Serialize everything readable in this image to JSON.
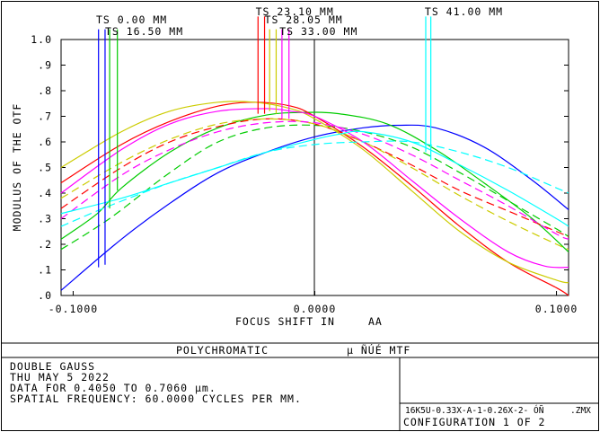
{
  "chart_data": {
    "type": "line",
    "ylabel": "MODULUS OF THE OTF",
    "xlabel": "FOCUS SHIFT IN",
    "xlabel_unit": "AA",
    "xlim": [
      -0.105,
      0.105
    ],
    "ylim": [
      0.0,
      1.0
    ],
    "x_ticks": [
      {
        "value": -0.1,
        "label": "-0.1000"
      },
      {
        "value": 0.0,
        "label": "0.0000"
      },
      {
        "value": 0.1,
        "label": "0.1000"
      }
    ],
    "y_ticks": [
      {
        "value": 1.0,
        "label": "1.0"
      },
      {
        "value": 0.9,
        "label": ".9"
      },
      {
        "value": 0.8,
        "label": ".8"
      },
      {
        "value": 0.7,
        "label": ".7"
      },
      {
        "value": 0.6,
        "label": ".6"
      },
      {
        "value": 0.5,
        "label": ".5"
      },
      {
        "value": 0.4,
        "label": ".4"
      },
      {
        "value": 0.3,
        "label": ".3"
      },
      {
        "value": 0.2,
        "label": ".2"
      },
      {
        "value": 0.1,
        "label": ".1"
      },
      {
        "value": 0.0,
        "label": ".0"
      }
    ],
    "field_labels": [
      {
        "text": "TS 0.00 MM",
        "anchor_x": -0.0905,
        "row": 0
      },
      {
        "text": "TS 16.50 MM",
        "anchor_x": -0.0868,
        "row": 1
      },
      {
        "text": "TS 23.10 MM",
        "anchor_x": -0.0245,
        "row": -1
      },
      {
        "text": "TS 28.05 MM",
        "anchor_x": -0.0208,
        "row": 0
      },
      {
        "text": "TS 33.00 MM",
        "anchor_x": -0.0146,
        "row": 1
      },
      {
        "text": "TS 41.00 MM",
        "anchor_x": 0.0455,
        "row": -1
      }
    ],
    "markers": [
      {
        "color": "#0000ff",
        "x": -0.0895,
        "y_top": 1.04,
        "y_bottom": 0.11
      },
      {
        "color": "#0000ff",
        "x": -0.0868,
        "y_top": 1.04,
        "y_bottom": 0.12
      },
      {
        "color": "#00cc00",
        "x": -0.0849,
        "y_top": 1.04,
        "y_bottom": 0.34
      },
      {
        "color": "#00cc00",
        "x": -0.0817,
        "y_top": 1.04,
        "y_bottom": 0.41
      },
      {
        "color": "#ff0000",
        "x": -0.0235,
        "y_top": 1.09,
        "y_bottom": 0.71
      },
      {
        "color": "#ff0000",
        "x": -0.0208,
        "y_top": 1.09,
        "y_bottom": 0.71
      },
      {
        "color": "#cccc00",
        "x": -0.0187,
        "y_top": 1.04,
        "y_bottom": 0.72
      },
      {
        "color": "#cccc00",
        "x": -0.016,
        "y_top": 1.04,
        "y_bottom": 0.71
      },
      {
        "color": "#ff00ff",
        "x": -0.0136,
        "y_top": 1.04,
        "y_bottom": 0.69
      },
      {
        "color": "#ff00ff",
        "x": -0.0107,
        "y_top": 1.04,
        "y_bottom": 0.69
      },
      {
        "color": "#00ffff",
        "x": 0.0459,
        "y_top": 1.09,
        "y_bottom": 0.56
      },
      {
        "color": "#00ffff",
        "x": 0.048,
        "y_top": 1.09,
        "y_bottom": 0.53
      }
    ],
    "series": [
      {
        "color": "#0000ff",
        "dash": false,
        "points": [
          [
            -0.105,
            0.02
          ],
          [
            -0.08,
            0.22
          ],
          [
            -0.06,
            0.36
          ],
          [
            -0.04,
            0.48
          ],
          [
            -0.02,
            0.56
          ],
          [
            0.0,
            0.62
          ],
          [
            0.02,
            0.655
          ],
          [
            0.035,
            0.665
          ],
          [
            0.05,
            0.655
          ],
          [
            0.07,
            0.58
          ],
          [
            0.09,
            0.45
          ],
          [
            0.105,
            0.335
          ]
        ]
      },
      {
        "color": "#00cc00",
        "dash": false,
        "points": [
          [
            -0.105,
            0.22
          ],
          [
            -0.09,
            0.32
          ],
          [
            -0.08,
            0.42
          ],
          [
            -0.06,
            0.56
          ],
          [
            -0.04,
            0.655
          ],
          [
            -0.02,
            0.705
          ],
          [
            -0.005,
            0.715
          ],
          [
            0.01,
            0.71
          ],
          [
            0.03,
            0.67
          ],
          [
            0.05,
            0.57
          ],
          [
            0.07,
            0.44
          ],
          [
            0.09,
            0.3
          ],
          [
            0.105,
            0.17
          ]
        ]
      },
      {
        "color": "#00cc00",
        "dash": true,
        "points": [
          [
            -0.105,
            0.18
          ],
          [
            -0.085,
            0.3
          ],
          [
            -0.06,
            0.48
          ],
          [
            -0.04,
            0.6
          ],
          [
            -0.02,
            0.655
          ],
          [
            0.0,
            0.665
          ],
          [
            0.02,
            0.64
          ],
          [
            0.04,
            0.58
          ],
          [
            0.06,
            0.48
          ],
          [
            0.08,
            0.37
          ],
          [
            0.1,
            0.26
          ],
          [
            0.105,
            0.23
          ]
        ]
      },
      {
        "color": "#ff0000",
        "dash": false,
        "points": [
          [
            -0.105,
            0.44
          ],
          [
            -0.08,
            0.59
          ],
          [
            -0.06,
            0.68
          ],
          [
            -0.04,
            0.74
          ],
          [
            -0.025,
            0.755
          ],
          [
            -0.01,
            0.74
          ],
          [
            0.0,
            0.7
          ],
          [
            0.02,
            0.58
          ],
          [
            0.04,
            0.43
          ],
          [
            0.06,
            0.27
          ],
          [
            0.08,
            0.13
          ],
          [
            0.1,
            0.03
          ],
          [
            0.105,
            0.0
          ]
        ]
      },
      {
        "color": "#ff0000",
        "dash": true,
        "points": [
          [
            -0.105,
            0.34
          ],
          [
            -0.08,
            0.5
          ],
          [
            -0.06,
            0.6
          ],
          [
            -0.04,
            0.66
          ],
          [
            -0.02,
            0.69
          ],
          [
            0.0,
            0.67
          ],
          [
            0.02,
            0.6
          ],
          [
            0.04,
            0.51
          ],
          [
            0.06,
            0.41
          ],
          [
            0.08,
            0.33
          ],
          [
            0.1,
            0.25
          ],
          [
            0.105,
            0.23
          ]
        ]
      },
      {
        "color": "#cccc00",
        "dash": false,
        "points": [
          [
            -0.105,
            0.5
          ],
          [
            -0.08,
            0.64
          ],
          [
            -0.06,
            0.72
          ],
          [
            -0.04,
            0.755
          ],
          [
            -0.025,
            0.755
          ],
          [
            -0.01,
            0.73
          ],
          [
            0.0,
            0.69
          ],
          [
            0.02,
            0.57
          ],
          [
            0.04,
            0.41
          ],
          [
            0.06,
            0.25
          ],
          [
            0.08,
            0.13
          ],
          [
            0.1,
            0.06
          ],
          [
            0.105,
            0.05
          ]
        ]
      },
      {
        "color": "#cccc00",
        "dash": true,
        "points": [
          [
            -0.105,
            0.38
          ],
          [
            -0.08,
            0.52
          ],
          [
            -0.06,
            0.61
          ],
          [
            -0.04,
            0.67
          ],
          [
            -0.02,
            0.69
          ],
          [
            0.0,
            0.67
          ],
          [
            0.02,
            0.6
          ],
          [
            0.04,
            0.5
          ],
          [
            0.06,
            0.39
          ],
          [
            0.08,
            0.29
          ],
          [
            0.1,
            0.2
          ],
          [
            0.105,
            0.18
          ]
        ]
      },
      {
        "color": "#ff00ff",
        "dash": false,
        "points": [
          [
            -0.105,
            0.4
          ],
          [
            -0.08,
            0.57
          ],
          [
            -0.06,
            0.67
          ],
          [
            -0.04,
            0.72
          ],
          [
            -0.02,
            0.73
          ],
          [
            -0.01,
            0.72
          ],
          [
            0.0,
            0.7
          ],
          [
            0.02,
            0.6
          ],
          [
            0.04,
            0.45
          ],
          [
            0.06,
            0.3
          ],
          [
            0.08,
            0.17
          ],
          [
            0.095,
            0.115
          ],
          [
            0.105,
            0.11
          ]
        ]
      },
      {
        "color": "#ff00ff",
        "dash": true,
        "points": [
          [
            -0.105,
            0.3
          ],
          [
            -0.08,
            0.47
          ],
          [
            -0.06,
            0.57
          ],
          [
            -0.04,
            0.64
          ],
          [
            -0.02,
            0.675
          ],
          [
            0.0,
            0.675
          ],
          [
            0.02,
            0.63
          ],
          [
            0.04,
            0.55
          ],
          [
            0.06,
            0.45
          ],
          [
            0.08,
            0.35
          ],
          [
            0.1,
            0.24
          ],
          [
            0.105,
            0.22
          ]
        ]
      },
      {
        "color": "#00ffff",
        "dash": false,
        "points": [
          [
            -0.105,
            0.32
          ],
          [
            -0.08,
            0.38
          ],
          [
            -0.06,
            0.44
          ],
          [
            -0.04,
            0.5
          ],
          [
            -0.02,
            0.56
          ],
          [
            0.0,
            0.61
          ],
          [
            0.01,
            0.63
          ],
          [
            0.02,
            0.64
          ],
          [
            0.04,
            0.6
          ],
          [
            0.06,
            0.51
          ],
          [
            0.08,
            0.41
          ],
          [
            0.1,
            0.3
          ],
          [
            0.105,
            0.27
          ]
        ]
      },
      {
        "color": "#00ffff",
        "dash": true,
        "points": [
          [
            -0.105,
            0.27
          ],
          [
            -0.085,
            0.35
          ],
          [
            -0.06,
            0.44
          ],
          [
            -0.04,
            0.5
          ],
          [
            -0.02,
            0.56
          ],
          [
            0.0,
            0.59
          ],
          [
            0.02,
            0.6
          ],
          [
            0.04,
            0.6
          ],
          [
            0.06,
            0.56
          ],
          [
            0.08,
            0.5
          ],
          [
            0.1,
            0.42
          ],
          [
            0.105,
            0.4
          ]
        ]
      }
    ]
  },
  "footer": {
    "title_left": "POLYCHROMATIC",
    "title_right": "μ ÑÚÉ MTF",
    "lines": [
      "DOUBLE GAUSS",
      "THU MAY 5 2022",
      "DATA FOR 0.4050 TO 0.7060 μm.",
      "SPATIAL FREQUENCY: 60.0000 CYCLES PER MM."
    ],
    "file_name": "16K5U-0.33X-A-1-0.26X-2- ÓÑ",
    "file_ext": ".ZMX",
    "configuration": "CONFIGURATION 1 OF 2"
  }
}
